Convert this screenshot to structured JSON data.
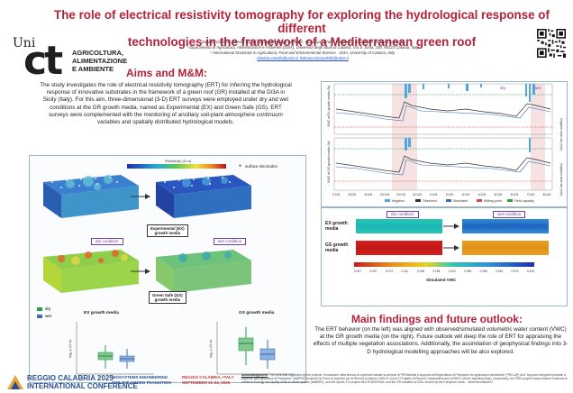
{
  "header": {
    "title_line1": "The role of electrical resistivity tomography for exploring the hydrological response of different",
    "title_line2": "technologies in the framework of a Mediterranean green roof",
    "logo_uni": "Uni",
    "logo_ct": "ct",
    "dept_line1": "AGRICOLTURA,",
    "dept_line2": "ALIMENTAZIONE",
    "dept_line3": "E AMBIENTE",
    "authors": "Daniela Vanella¹, Alessio Rizzo¹, Giuseppe Longo-Minnolo¹, Giuseppe Cirelli¹, Feliciana Licciardello¹, Simona Consoli¹",
    "affiliation1": "¹ Dipartimento di Agricoltura, Alimentazione e Ambiente (Di3A), Università degli Studi di Catania, Via S. Sofia, 100, 95123 Catania, Italy",
    "affiliation2": "² International Doctorate in Agricultural, Food and Environmental Science - Di3A, University of Catania, Italy",
    "email": "daniela.vanella@unict.it, feliciana.licciardello@unict.it"
  },
  "aims": {
    "title": "Aims and M&M:",
    "text_parts": [
      "The study investigates the role of electrical resistivity tomography (ERT) for inferring the hydrological response of innovative substrates in the framework of a green roof (GR) installed at the Di3A in Sicily (Italy). For this aim, three-dimensional (3-D) ERT surveys were employed under dry and wet conditions at the GR growth media, named as Experimental (EX) and Green Safe (GS). ERT surveys were complemented with the monitoring of ancillary soil-plant-atmosphere ",
      "continuum",
      " variables and spatially distributed hydrological models."
    ]
  },
  "ert_panel": {
    "colorbar_label": "Resistivity (Ω m)",
    "surface_electrodes": "surface electrodes",
    "ex_label_line1": "Experimental (EX)",
    "ex_label_line2": "growth media",
    "gs_label_line1": "Green Safe (GS)",
    "gs_label_line2": "growth media",
    "dry_condition": "dry condition",
    "wet_condition": "wet condition",
    "legend_dry": "dry",
    "legend_wet": "wet",
    "ex_box_title": "EX growth media",
    "gs_box_title": "GS growth media",
    "box_ylabel": "log₁₀ ρ (Ω m)"
  },
  "timeseries_chart": {
    "dry": "dry",
    "wet": "wet",
    "ylabel_top": "VWC at EX growth media (%)",
    "ylabel_bottom": "VWC at GS growth media (%)",
    "ylabel_right": "Irrigation and rain (mm)",
    "x_ticks": [
      "7/1/24",
      "8/1/24",
      "9/1/24",
      "10/1/24",
      "11/1/24",
      "12/1/24",
      "1/1/24",
      "2/1/24",
      "3/1/24",
      "4/1/24",
      "5/1/24",
      "6/1/24",
      "7/1/24",
      "8/1/24"
    ],
    "legend": [
      "Irrigation",
      "Observed",
      "Simulated",
      "Wilting point",
      "Field capacity"
    ]
  },
  "vwc_maps": {
    "dry_condition": "dry condition",
    "wet_condition": "wet condition",
    "ex_label_line1": "EX growth",
    "ex_label_line2": "media",
    "gs_label_line1": "GS growth",
    "gs_label_line2": "media",
    "scale_ticks": [
      "0.007",
      "0.037",
      "0.074",
      "0.111",
      "0.148",
      "0.185",
      "0.222",
      "0.259",
      "0.296",
      "0.333",
      "0.370",
      "0.415"
    ],
    "scale_title": "Simulated VWC"
  },
  "findings": {
    "title": "Main findings and future outlook:",
    "text": "The ERT behavior (on the left) was aligned with observed/simulated volumetric water content (VWC) at the GR growth media (on the right). Future outlook will deep the role of ERT for appraising the effects of multiple vegetation associations. Additionally, the assimilation of geophysical findings into 3-D hydrological modelling approaches will be also explored."
  },
  "footer": {
    "conf_line1": "REGGIO CALABRIA 2025",
    "conf_line2": "INTERNATIONAL CONFERENCE",
    "conf_theme_line1": "BIOSYSTEMS ENGINEERING",
    "conf_theme_line2": "FOR THE GREEN TRANSITION",
    "conf_place_line1": "REGGIO CALABRIA, ITALY",
    "conf_place_line2": "SEPTEMBER 21-24, 2025",
    "ack_title": "Acknowledgement",
    "ack_text": ": The work was supported by the projects \"Innovazioni nella tecnica di coperture basate su sensori di PROssimità a supporto dell'Agricoltura di Precisione ed applicazioni ambientali\" (PRO-AP) and \"Approcci integrati innovativi a supporto dell'Agricoltura di Precisione\" (AMPRO) financed by Piano di Incentivi per la Ricerca di Ateneo 2020/22 Linea 2 Progetto di Ricerca Collaborativa and NODES (Green Warming Blue), respectively, the PRIN project Nature-Based Solutions to enhance Ecology and quality of life in urbaN spaces (NaBSEn), and the Spoke 3 of project MULTIREGIONAL and the GR installed at Di3A, funded by the European Union - NextGenerationEU."
  },
  "colors": {
    "title": "#b5223b",
    "accent_blue": "#1a4fd6",
    "conf_blue": "#2a4f8f",
    "dry_legend": "#2e9e45",
    "wet_legend": "#3a6fb5"
  }
}
